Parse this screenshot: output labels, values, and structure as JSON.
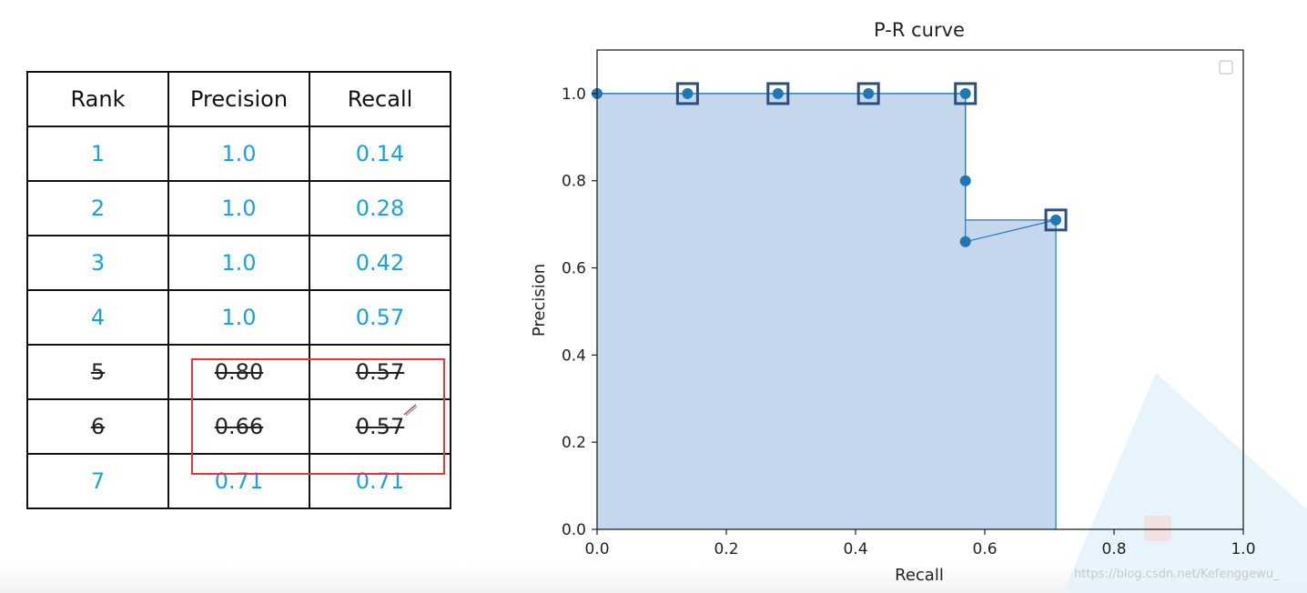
{
  "table": {
    "headers": [
      "Rank",
      "Precision",
      "Recall"
    ],
    "rows": [
      {
        "rank": "1",
        "precision": "1.0",
        "recall": "0.14",
        "struck": false
      },
      {
        "rank": "2",
        "precision": "1.0",
        "recall": "0.28",
        "struck": false
      },
      {
        "rank": "3",
        "precision": "1.0",
        "recall": "0.42",
        "struck": false
      },
      {
        "rank": "4",
        "precision": "1.0",
        "recall": "0.57",
        "struck": false
      },
      {
        "rank": "5",
        "precision": "0.80",
        "recall": "0.57",
        "struck": true
      },
      {
        "rank": "6",
        "precision": "0.66",
        "recall": "0.57",
        "struck": true
      },
      {
        "rank": "7",
        "precision": "0.71",
        "recall": "0.71",
        "struck": false
      }
    ],
    "value_color": "#1aa2dd",
    "highlight_color": "#e0393b"
  },
  "chart_data": {
    "type": "line",
    "title": "P-R curve",
    "xlabel": "Recall",
    "ylabel": "Precision",
    "xlim": [
      0.0,
      1.0
    ],
    "ylim": [
      0.0,
      1.1
    ],
    "xticks": [
      "0.0",
      "0.2",
      "0.4",
      "0.6",
      "0.8",
      "1.0"
    ],
    "yticks": [
      "0.0",
      "0.2",
      "0.4",
      "0.6",
      "0.8",
      "1.0"
    ],
    "grid": false,
    "legend": "top-right (empty)",
    "series": [
      {
        "x": [
          0.0,
          0.14,
          0.28,
          0.42,
          0.57,
          0.57,
          0.57,
          0.71
        ],
        "y": [
          1.0,
          1.0,
          1.0,
          1.0,
          1.0,
          0.8,
          0.66,
          0.71
        ]
      }
    ],
    "selected_points": [
      {
        "x": 0.14,
        "y": 1.0
      },
      {
        "x": 0.28,
        "y": 1.0
      },
      {
        "x": 0.42,
        "y": 1.0
      },
      {
        "x": 0.57,
        "y": 1.0
      },
      {
        "x": 0.71,
        "y": 0.71
      }
    ],
    "interpolated_area": {
      "x": [
        0.0,
        0.57,
        0.57,
        0.71,
        0.71
      ],
      "y": [
        1.0,
        1.0,
        0.71,
        0.71,
        0.0
      ]
    },
    "colors": {
      "line": "#1f77b4",
      "fill": "#c5d7ed",
      "square": "#2b4f7e"
    }
  },
  "watermark": "https://blog.csdn.net/Kefenggewu_"
}
